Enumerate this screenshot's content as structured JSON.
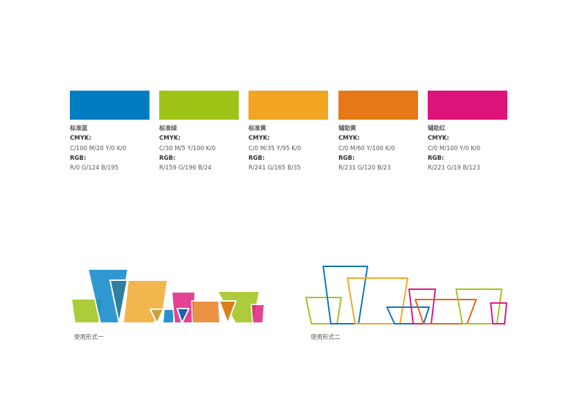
{
  "colors": [
    {
      "name": "标准蓝",
      "cmyk_label": "CMYK:",
      "cmyk": "C/100  M/20  Y/0  K/0",
      "rgb_label": "RGB:",
      "rgb": "R/0  G/124  B/195",
      "hex": "#007CC3"
    },
    {
      "name": "标准绿",
      "cmyk_label": "CMYK:",
      "cmyk": "C/30  M/5  Y/100  K/0",
      "rgb_label": "RGB:",
      "rgb": "R/159  G/196  B/24",
      "hex": "#9FC418"
    },
    {
      "name": "标准黄",
      "cmyk_label": "CMYK:",
      "cmyk": "C/0  M/35  Y/95  K/0",
      "rgb_label": "RGB:",
      "rgb": "R/241  G/165  B/35",
      "hex": "#F1A523"
    },
    {
      "name": "辅助黄",
      "cmyk_label": "CMYK:",
      "cmyk": "C/0  M/60  Y/100  K/0",
      "rgb_label": "RGB:",
      "rgb": "R/231  G/120  B/23",
      "hex": "#E77817"
    },
    {
      "name": "辅助红",
      "cmyk_label": "CMYK:",
      "cmyk": "C/0  M/100  Y/0  K/0",
      "rgb_label": "RGB:",
      "rgb": "R/221  G/19  B/123",
      "hex": "#DD137B"
    }
  ],
  "forms": [
    {
      "caption": "使用形式一"
    },
    {
      "caption": "使用形式二"
    }
  ]
}
